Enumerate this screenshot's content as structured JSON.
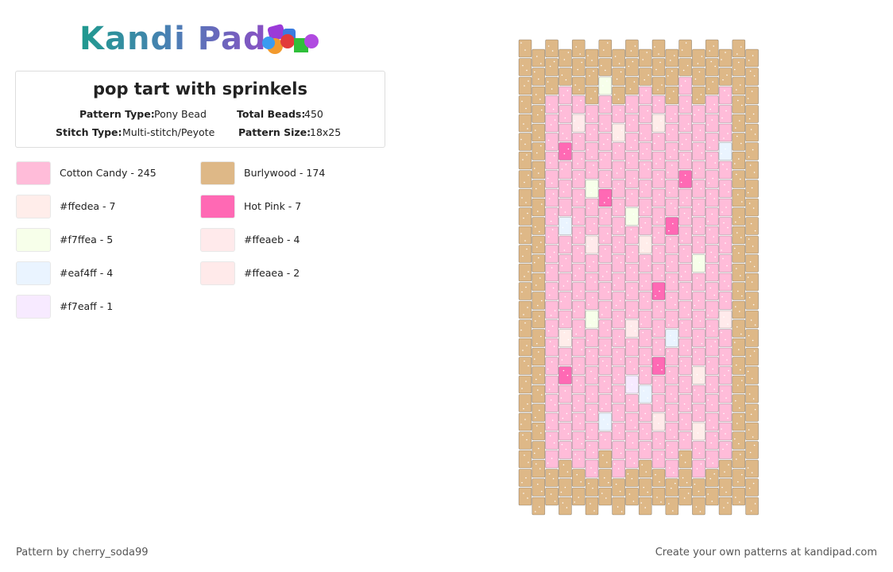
{
  "header": {
    "logo": "Kandi Pad",
    "title": "pop tart with sprinkels",
    "fields": [
      {
        "label": "Pattern Type:",
        "value": "Pony Bead"
      },
      {
        "label": "Total Beads:",
        "value": "450"
      },
      {
        "label": "Stitch Type:",
        "value": "Multi-stitch/Peyote"
      },
      {
        "label": "Pattern Size:",
        "value": "18x25"
      }
    ]
  },
  "legend": [
    {
      "label": "Cotton Candy - 245",
      "color": "#ffbcd9"
    },
    {
      "label": "#ffedea - 7",
      "color": "#ffedea"
    },
    {
      "label": "#f7ffea - 5",
      "color": "#f7ffea"
    },
    {
      "label": "#eaf4ff - 4",
      "color": "#eaf4ff"
    },
    {
      "label": "#f7eaff - 1",
      "color": "#f7eaff"
    },
    {
      "label": "Burlywood - 174",
      "color": "#deb887"
    },
    {
      "label": "Hot Pink - 7",
      "color": "#ff69b4"
    },
    {
      "label": "#ffeaeb - 4",
      "color": "#ffeaeb"
    },
    {
      "label": "#ffeaea - 2",
      "color": "#ffeaea"
    }
  ],
  "footer": {
    "left": "Pattern by cherry_soda99",
    "right": "Create your own patterns at kandipad.com"
  }
}
